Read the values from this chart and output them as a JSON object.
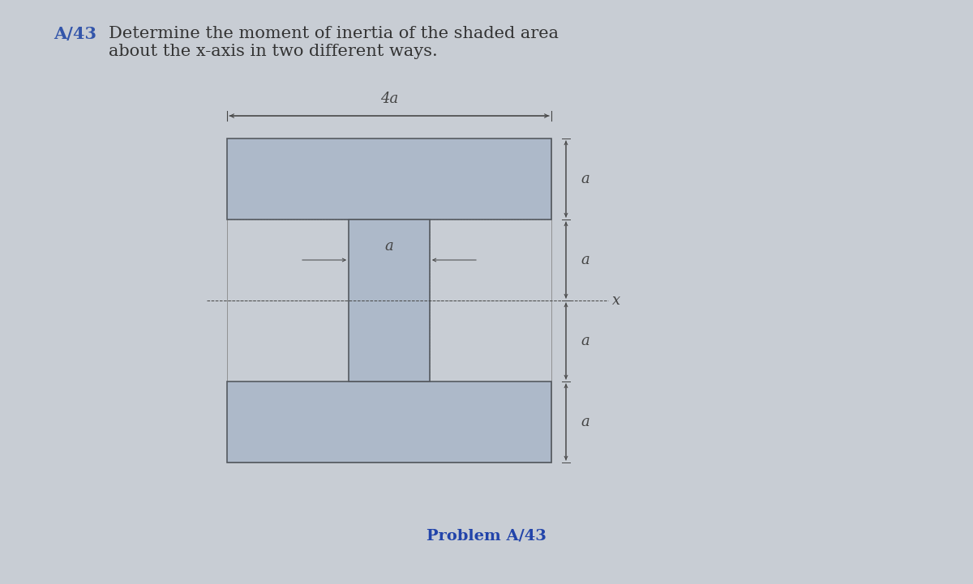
{
  "bg_color": "#c8cdd4",
  "shape_fill": "#adb9c9",
  "shape_edge": "#555a60",
  "shape_edge_width": 1.2,
  "dim_line_color": "#444444",
  "text_color": "#444444",
  "title_color_prefix": "#3355aa",
  "title_color_body": "#333333",
  "title_prefix": "A/43",
  "title_body": " Determine the moment of inertia of the shaded area\nabout the x-axis in two different ways.",
  "problem_label": "Problem A/43",
  "problem_label_color": "#2244aa",
  "a": 1.0,
  "title_fontsize": 15.0,
  "label_fontsize": 13,
  "dim_fontsize": 13,
  "fig_width": 12.0,
  "fig_height": 7.21
}
